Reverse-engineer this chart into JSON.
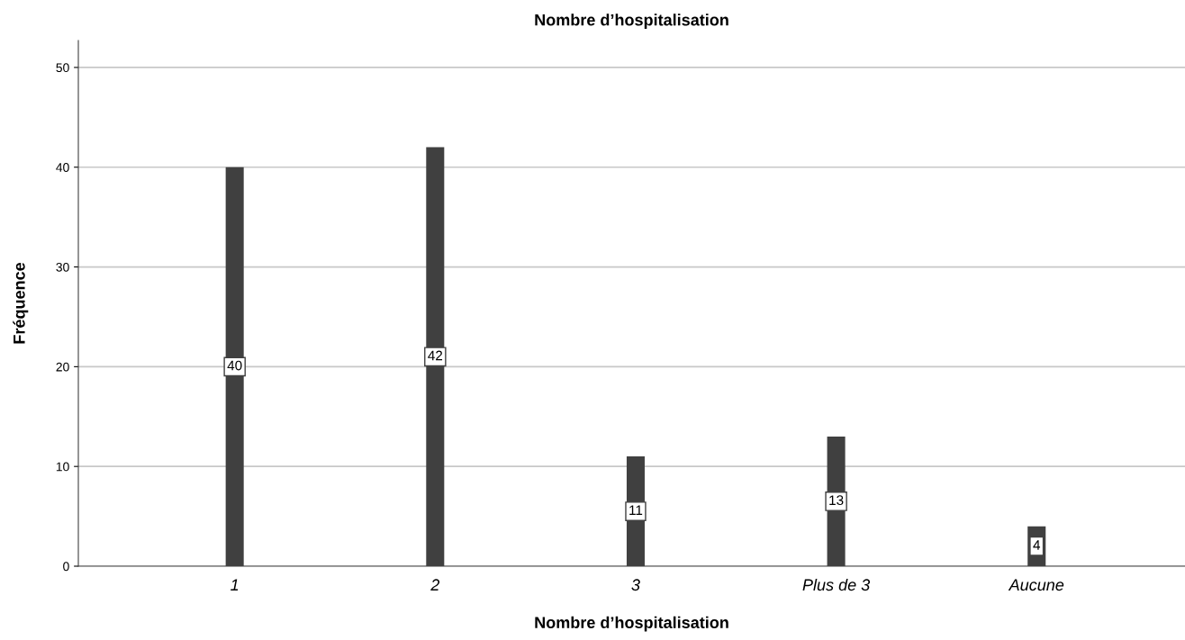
{
  "chart_data": {
    "type": "bar",
    "title": "Nombre d’hospitalisation",
    "xlabel": "Nombre d’hospitalisation",
    "ylabel": "Fréquence",
    "categories": [
      "1",
      "2",
      "3",
      "Plus de 3",
      "Aucune"
    ],
    "values": [
      40,
      42,
      11,
      13,
      4
    ],
    "color": "#404040",
    "ylim": [
      0,
      52.7
    ],
    "yticks": [
      0,
      10,
      20,
      30,
      40,
      50
    ],
    "grid": "y",
    "data_labels": true
  }
}
